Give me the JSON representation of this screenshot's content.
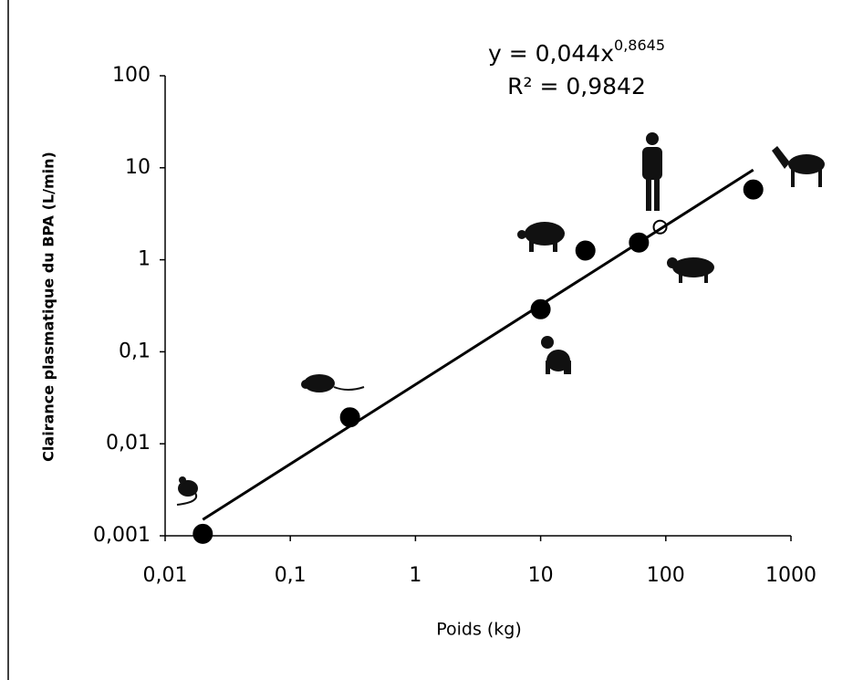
{
  "chart_data": {
    "type": "scatter",
    "equation": "y = 0,044x",
    "exponent": "0,8645",
    "r_squared": "R² = 0,9842",
    "xlabel": "Poids (kg)",
    "ylabel": "Clairance plasmatique du BPA (L/min)",
    "xscale": "log",
    "yscale": "log",
    "xlim": [
      0.01,
      1000
    ],
    "ylim": [
      0.001,
      100
    ],
    "xticks": [
      {
        "value": 0.01,
        "label": "0,01"
      },
      {
        "value": 0.1,
        "label": "0,1"
      },
      1,
      10,
      100,
      1000
    ],
    "yticks": [
      {
        "value": 0.001,
        "label": "0,001"
      },
      {
        "value": 0.01,
        "label": "0,01"
      },
      {
        "value": 0.1,
        "label": "0,1"
      },
      1,
      10,
      100
    ],
    "series": [
      {
        "marker": "filled",
        "color": "#000000",
        "x": [
          0.02,
          0.3,
          10,
          22.8,
          61,
          500
        ],
        "values": [
          0.00105,
          0.0194,
          0.29,
          1.26,
          1.54,
          5.8
        ]
      },
      {
        "marker": "open",
        "color": "#000000",
        "x": [
          90
        ],
        "values": [
          2.27
        ]
      },
      {
        "marker": "line",
        "color": "#000000",
        "x": [
          0.02,
          500
        ],
        "values": [
          0.0015,
          9.48
        ]
      }
    ]
  }
}
